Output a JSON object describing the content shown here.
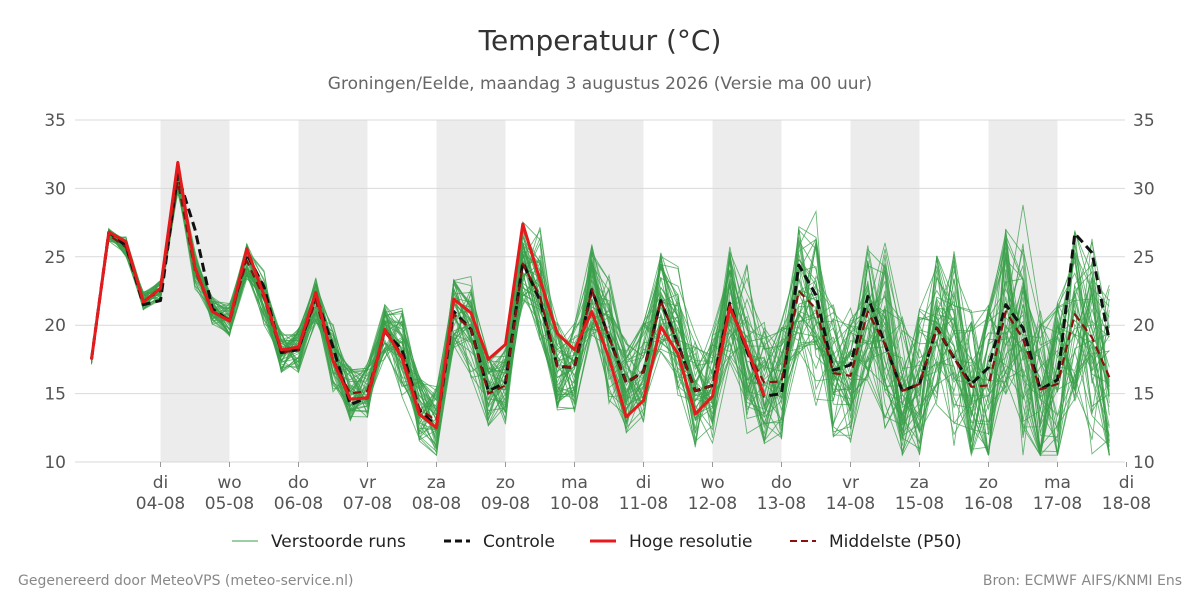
{
  "header": {
    "title": "Temperatuur (°C)",
    "subtitle": "Groningen/Eelde, maandag  3 augustus 2026 (Versie ma 00 uur)"
  },
  "footer": {
    "left": "Gegenereerd door MeteoVPS (meteo-service.nl)",
    "right": "Bron: ECMWF AIFS/KNMI Ens"
  },
  "legend": {
    "ensemble": "Verstoorde runs",
    "control": "Controle",
    "hires": "Hoge resolutie",
    "median": "Middelste (P50)"
  },
  "colors": {
    "ensemble": "#3a9f4a",
    "control": "#111111",
    "hires": "#e41a1c",
    "median": "#8b1010",
    "weekend_band": "#ececec",
    "grid": "#d9d9d9"
  },
  "chart_data": {
    "type": "line",
    "ylim": [
      10,
      35
    ],
    "yticks": [
      10,
      15,
      20,
      25,
      30,
      35
    ],
    "x_range_days": [
      "2026-08-03",
      "2026-08-18"
    ],
    "time_step_hours": 6,
    "x_start": "2026-08-03 00:00",
    "day_labels": [
      {
        "day": "di",
        "date": "04-08"
      },
      {
        "day": "wo",
        "date": "05-08"
      },
      {
        "day": "do",
        "date": "06-08"
      },
      {
        "day": "vr",
        "date": "07-08"
      },
      {
        "day": "za",
        "date": "08-08"
      },
      {
        "day": "zo",
        "date": "09-08"
      },
      {
        "day": "ma",
        "date": "10-08"
      },
      {
        "day": "di",
        "date": "11-08"
      },
      {
        "day": "wo",
        "date": "12-08"
      },
      {
        "day": "do",
        "date": "13-08"
      },
      {
        "day": "vr",
        "date": "14-08"
      },
      {
        "day": "za",
        "date": "15-08"
      },
      {
        "day": "zo",
        "date": "16-08"
      },
      {
        "day": "ma",
        "date": "17-08"
      },
      {
        "day": "di",
        "date": "18-08"
      }
    ],
    "shaded_days": [
      "04-08",
      "06-08",
      "08-08",
      "10-08",
      "12-08",
      "14-08",
      "16-08"
    ],
    "series": [
      {
        "name": "Controle",
        "values": [
          17.5,
          26.8,
          25.8,
          21.5,
          21.8,
          31.0,
          27.0,
          21.2,
          20.3,
          25.2,
          22.8,
          18.0,
          18.2,
          22.2,
          18.4,
          14.2,
          14.7,
          19.6,
          18.2,
          13.8,
          12.6,
          21.0,
          19.7,
          15.2,
          15.8,
          24.6,
          21.8,
          17.0,
          16.9,
          22.6,
          19.1,
          15.8,
          16.6,
          21.8,
          18.6,
          15.2,
          15.6,
          21.6,
          18.1,
          14.8,
          15.0,
          24.4,
          22.2,
          16.7,
          17.1,
          22.1,
          18.6,
          15.2,
          15.7,
          19.8,
          17.6,
          15.7,
          16.9,
          21.5,
          19.8,
          15.3,
          16.0,
          26.7,
          25.3,
          18.9
        ]
      },
      {
        "name": "Hoge resolutie",
        "values": [
          17.5,
          26.8,
          26.1,
          21.7,
          22.7,
          31.9,
          24.2,
          21.0,
          20.3,
          25.6,
          22.2,
          18.2,
          18.4,
          22.4,
          17.4,
          14.6,
          14.7,
          19.7,
          17.6,
          13.5,
          12.5,
          21.9,
          20.9,
          17.5,
          18.6,
          27.4,
          23.3,
          19.4,
          18.2,
          21.0,
          17.6,
          13.3,
          14.5,
          19.9,
          17.9,
          13.5,
          14.8,
          21.3,
          18.4,
          14.8
        ]
      },
      {
        "name": "Middelste (P50)",
        "values": [
          17.5,
          26.6,
          25.7,
          21.8,
          22.5,
          30.5,
          24.0,
          21.0,
          20.4,
          24.7,
          22.0,
          18.0,
          18.2,
          21.8,
          17.5,
          15.0,
          15.2,
          19.5,
          17.9,
          13.9,
          13.0,
          20.8,
          19.7,
          15.0,
          15.6,
          24.5,
          22.1,
          17.0,
          16.9,
          22.6,
          19.1,
          15.8,
          16.6,
          21.8,
          18.6,
          15.2,
          15.6,
          21.5,
          18.1,
          15.8,
          15.9,
          22.5,
          21.2,
          16.5,
          16.3,
          21.0,
          18.6,
          15.2,
          15.7,
          19.8,
          17.6,
          15.5,
          15.6,
          21.0,
          19.0,
          15.3,
          15.7,
          20.8,
          19.1,
          16.2
        ]
      }
    ]
  }
}
